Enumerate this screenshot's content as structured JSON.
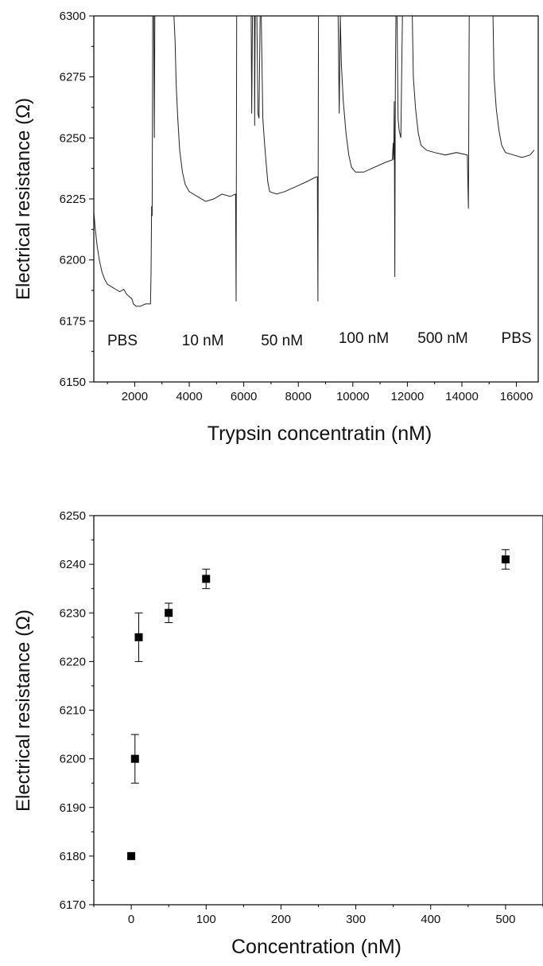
{
  "chart_data": [
    {
      "type": "line",
      "xlabel": "Trypsin concentratin (nM)",
      "ylabel": "Electrical resistance (Ω)",
      "xlim": [
        500,
        16800
      ],
      "ylim": [
        6150,
        6300
      ],
      "xticks": [
        2000,
        4000,
        6000,
        8000,
        10000,
        12000,
        14000,
        16000
      ],
      "yticks": [
        6150,
        6175,
        6200,
        6225,
        6250,
        6275,
        6300
      ],
      "segment_labels": [
        {
          "text": "PBS",
          "x": 1550,
          "y": 6165
        },
        {
          "text": "10 nM",
          "x": 4500,
          "y": 6165
        },
        {
          "text": "50 nM",
          "x": 7400,
          "y": 6165
        },
        {
          "text": "100 nM",
          "x": 10400,
          "y": 6166
        },
        {
          "text": "500 nM",
          "x": 13300,
          "y": 6166
        },
        {
          "text": "PBS",
          "x": 16000,
          "y": 6166
        }
      ],
      "series": [
        {
          "color": "#222222",
          "points": [
            [
              500,
              6220
            ],
            [
              550,
              6213
            ],
            [
              620,
              6206
            ],
            [
              700,
              6200
            ],
            [
              800,
              6195
            ],
            [
              900,
              6192
            ],
            [
              1000,
              6190
            ],
            [
              1150,
              6189
            ],
            [
              1300,
              6188
            ],
            [
              1450,
              6187
            ],
            [
              1600,
              6188
            ],
            [
              1700,
              6186
            ],
            [
              1800,
              6185
            ],
            [
              1900,
              6184
            ],
            [
              1950,
              6182
            ],
            [
              2050,
              6181
            ],
            [
              2200,
              6181
            ],
            [
              2400,
              6182
            ],
            [
              2580,
              6182
            ],
            [
              2600,
              6195
            ],
            [
              2620,
              6222
            ],
            [
              2640,
              6218
            ],
            [
              2660,
              6300
            ],
            [
              2700,
              6300
            ],
            [
              2720,
              6250
            ],
            [
              2740,
              6300
            ],
            [
              3440,
              6300
            ],
            [
              3480,
              6290
            ],
            [
              3520,
              6272
            ],
            [
              3580,
              6258
            ],
            [
              3650,
              6245
            ],
            [
              3750,
              6236
            ],
            [
              3850,
              6231
            ],
            [
              4000,
              6228
            ],
            [
              4300,
              6226
            ],
            [
              4600,
              6224
            ],
            [
              4900,
              6225
            ],
            [
              5200,
              6227
            ],
            [
              5500,
              6226
            ],
            [
              5700,
              6227
            ],
            [
              5720,
              6183
            ],
            [
              5740,
              6300
            ],
            [
              6270,
              6300
            ],
            [
              6290,
              6260
            ],
            [
              6320,
              6300
            ],
            [
              6390,
              6300
            ],
            [
              6400,
              6255
            ],
            [
              6420,
              6300
            ],
            [
              6480,
              6300
            ],
            [
              6520,
              6260
            ],
            [
              6560,
              6258
            ],
            [
              6600,
              6300
            ],
            [
              6640,
              6300
            ],
            [
              6700,
              6258
            ],
            [
              6760,
              6248
            ],
            [
              6820,
              6240
            ],
            [
              6880,
              6232
            ],
            [
              6950,
              6228
            ],
            [
              7200,
              6227
            ],
            [
              7500,
              6228
            ],
            [
              7900,
              6230
            ],
            [
              8300,
              6232
            ],
            [
              8650,
              6234
            ],
            [
              8700,
              6234
            ],
            [
              8720,
              6183
            ],
            [
              8740,
              6300
            ],
            [
              9460,
              6300
            ],
            [
              9500,
              6260
            ],
            [
              9540,
              6300
            ],
            [
              9580,
              6280
            ],
            [
              9650,
              6265
            ],
            [
              9750,
              6252
            ],
            [
              9850,
              6243
            ],
            [
              9950,
              6238
            ],
            [
              10100,
              6236
            ],
            [
              10400,
              6236
            ],
            [
              10800,
              6238
            ],
            [
              11200,
              6240
            ],
            [
              11450,
              6241
            ],
            [
              11480,
              6248
            ],
            [
              11500,
              6241
            ],
            [
              11520,
              6265
            ],
            [
              11540,
              6193
            ],
            [
              11560,
              6273
            ],
            [
              11580,
              6300
            ],
            [
              11620,
              6300
            ],
            [
              11660,
              6258
            ],
            [
              11700,
              6253
            ],
            [
              11760,
              6250
            ],
            [
              11820,
              6300
            ],
            [
              12180,
              6300
            ],
            [
              12220,
              6275
            ],
            [
              12300,
              6262
            ],
            [
              12400,
              6252
            ],
            [
              12500,
              6247
            ],
            [
              12700,
              6245
            ],
            [
              13000,
              6244
            ],
            [
              13400,
              6243
            ],
            [
              13800,
              6244
            ],
            [
              14200,
              6243
            ],
            [
              14240,
              6221
            ],
            [
              14270,
              6300
            ],
            [
              15140,
              6300
            ],
            [
              15180,
              6275
            ],
            [
              15260,
              6262
            ],
            [
              15360,
              6253
            ],
            [
              15460,
              6247
            ],
            [
              15600,
              6244
            ],
            [
              15900,
              6243
            ],
            [
              16200,
              6242
            ],
            [
              16500,
              6243
            ],
            [
              16650,
              6245
            ]
          ]
        }
      ]
    },
    {
      "type": "scatter",
      "xlabel": "Concentration (nM)",
      "ylabel": "Electrical resistance (Ω)",
      "xlim": [
        -50,
        550
      ],
      "ylim": [
        6170,
        6250
      ],
      "xticks": [
        0,
        100,
        200,
        300,
        400,
        500
      ],
      "yticks": [
        6170,
        6180,
        6190,
        6200,
        6210,
        6220,
        6230,
        6240,
        6250
      ],
      "series": [
        {
          "color": "#000000",
          "points": [
            {
              "x": 0,
              "y": 6180,
              "err": 0.5
            },
            {
              "x": 5,
              "y": 6200,
              "err": 5
            },
            {
              "x": 10,
              "y": 6225,
              "err": 5
            },
            {
              "x": 50,
              "y": 6230,
              "err": 2
            },
            {
              "x": 100,
              "y": 6237,
              "err": 2
            },
            {
              "x": 500,
              "y": 6241,
              "err": 2
            }
          ]
        }
      ]
    }
  ]
}
